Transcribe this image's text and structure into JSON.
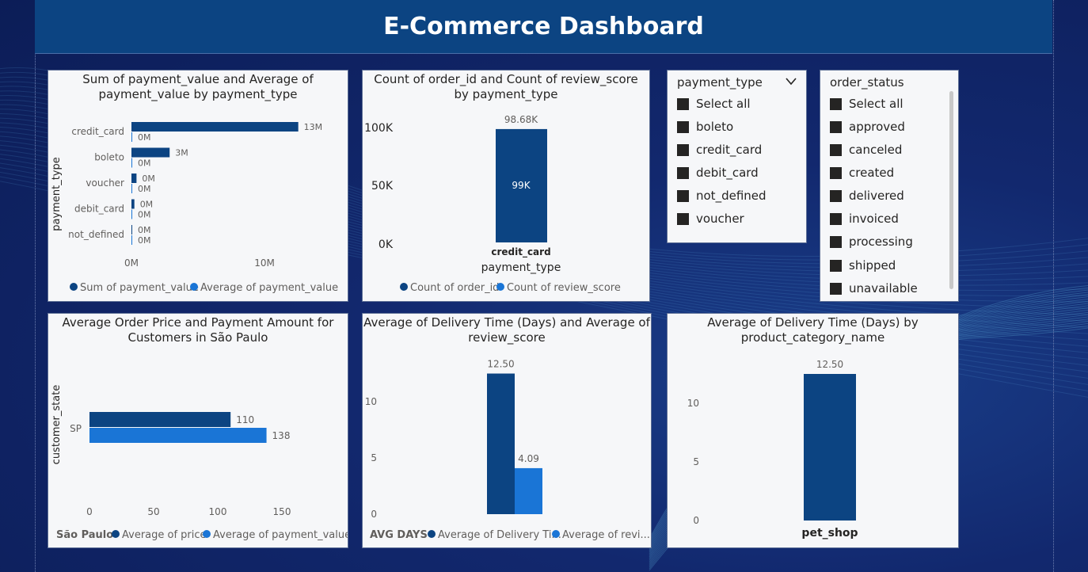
{
  "dashboard": {
    "title": "E-Commerce Dashboard"
  },
  "colors": {
    "dark_series": "#0c4482",
    "light_series": "#1a75d6",
    "card_bg": "#f6f7f9"
  },
  "chart1": {
    "title_line1": "Sum of payment_value and Average of",
    "title_line2": "payment_value by payment_type",
    "ylabel": "payment_type",
    "legend": [
      "Sum of payment_value",
      "Average of payment_value"
    ],
    "xticks": [
      "0M",
      "10M"
    ],
    "chart_data": {
      "type": "bar",
      "orientation": "horizontal",
      "categories": [
        "credit_card",
        "boleto",
        "voucher",
        "debit_card",
        "not_defined"
      ],
      "series": [
        {
          "name": "Sum of payment_value",
          "values": [
            12.54,
            2.87,
            0.38,
            0.22,
            0.0
          ],
          "labels": [
            "13M",
            "3M",
            "0M",
            "0M",
            "0M"
          ]
        },
        {
          "name": "Average of payment_value",
          "values": [
            0.000163,
            0.000146,
            6.6e-05,
            0.000143,
            0.0
          ],
          "labels": [
            "0M",
            "0M",
            "0M",
            "0M",
            "0M"
          ]
        }
      ],
      "xlim": [
        0,
        16
      ]
    }
  },
  "chart2": {
    "title_line1": "Count of order_id and Count of review_score",
    "title_line2": "by payment_type",
    "xlabel": "payment_type",
    "legend": [
      "Count of order_id",
      "Count of review_score"
    ],
    "yticks": [
      "100K",
      "50K",
      "0K"
    ],
    "chart_data": {
      "type": "bar",
      "categories": [
        "credit_card"
      ],
      "series": [
        {
          "name": "Count of order_id",
          "values": [
            98680
          ],
          "top_label": "98.68K",
          "inner_label": "99K"
        }
      ],
      "ylim": [
        0,
        100000
      ]
    }
  },
  "slicer_payment": {
    "title": "payment_type",
    "items": [
      "Select all",
      "boleto",
      "credit_card",
      "debit_card",
      "not_defined",
      "voucher"
    ]
  },
  "slicer_status": {
    "title": "order_status",
    "items": [
      "Select all",
      "approved",
      "canceled",
      "created",
      "delivered",
      "invoiced",
      "processing",
      "shipped",
      "unavailable"
    ]
  },
  "chart3": {
    "title_line1": "Average Order Price and Payment Amount for",
    "title_line2": "Customers in São Paulo",
    "ylabel": "customer_state",
    "legend_prefix": "São Paulo",
    "legend": [
      "Average of price",
      "Average of payment_value"
    ],
    "xticks": [
      "0",
      "50",
      "100",
      "150"
    ],
    "chart_data": {
      "type": "bar",
      "orientation": "horizontal",
      "categories": [
        "SP"
      ],
      "series": [
        {
          "name": "Average of price",
          "values": [
            110
          ],
          "labels": [
            "110"
          ]
        },
        {
          "name": "Average of payment_value",
          "values": [
            138
          ],
          "labels": [
            "138"
          ]
        }
      ],
      "xlim": [
        0,
        160
      ]
    }
  },
  "chart4": {
    "title_line1": "Average of Delivery Time (Days) and Average of",
    "title_line2": "review_score",
    "legend_prefix": "AVG DAYS",
    "legend": [
      "Average of Delivery Ti...",
      "Average of revi..."
    ],
    "yticks": [
      "10",
      "5",
      "0"
    ],
    "chart_data": {
      "type": "bar",
      "categories": [
        ""
      ],
      "series": [
        {
          "name": "Average of Delivery Time (Days)",
          "values": [
            12.5
          ],
          "labels": [
            "12.50"
          ]
        },
        {
          "name": "Average of review_score",
          "values": [
            4.09
          ],
          "labels": [
            "4.09"
          ]
        }
      ],
      "ylim": [
        0,
        13
      ]
    }
  },
  "chart5": {
    "title_line1": "Average of Delivery Time (Days) by",
    "title_line2": "product_category_name",
    "yticks": [
      "10",
      "5",
      "0"
    ],
    "chart_data": {
      "type": "bar",
      "categories": [
        "pet_shop"
      ],
      "series": [
        {
          "name": "Average of Delivery Time (Days)",
          "values": [
            12.5
          ],
          "labels": [
            "12.50"
          ]
        }
      ],
      "ylim": [
        0,
        13
      ]
    }
  }
}
